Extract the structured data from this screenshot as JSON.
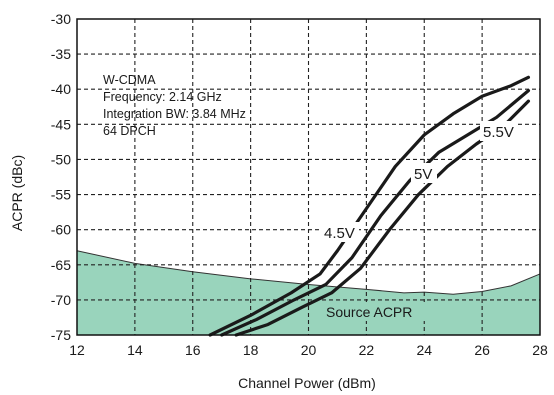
{
  "chart_data": {
    "type": "line",
    "title": "",
    "xlabel": "Channel Power (dBm)",
    "ylabel": "ACPR (dBc)",
    "xlim": [
      12,
      28
    ],
    "ylim": [
      -75,
      -30
    ],
    "xticks": [
      12,
      14,
      16,
      18,
      20,
      22,
      24,
      26,
      28
    ],
    "yticks": [
      -30,
      -35,
      -40,
      -45,
      -50,
      -55,
      -60,
      -65,
      -70,
      -75
    ],
    "grid": true,
    "grid_style": "dashed",
    "annotation_lines": [
      "W-CDMA",
      "Frequency: 2.14 GHz",
      "Integration BW: 3.84 MHz",
      "64 DPCH"
    ],
    "series": [
      {
        "name": "4.5V",
        "color": "#1a1a1a",
        "x": [
          16.6,
          18.0,
          19.4,
          20.4,
          21.0,
          22.0,
          23.0,
          24.0,
          25.0,
          26.0,
          27.0,
          27.6
        ],
        "y": [
          -75.0,
          -72.2,
          -69.0,
          -66.3,
          -63.0,
          -57.0,
          -51.0,
          -46.5,
          -43.5,
          -41.0,
          -39.5,
          -38.3
        ]
      },
      {
        "name": "5V",
        "color": "#1a1a1a",
        "x": [
          17.0,
          18.2,
          19.5,
          20.6,
          21.5,
          22.5,
          23.5,
          24.5,
          25.5,
          26.5,
          27.6
        ],
        "y": [
          -75.0,
          -72.8,
          -70.0,
          -67.8,
          -64.0,
          -58.0,
          -53.0,
          -49.0,
          -46.5,
          -44.0,
          -40.2
        ]
      },
      {
        "name": "5.5V",
        "color": "#1a1a1a",
        "x": [
          17.5,
          18.6,
          19.8,
          20.8,
          21.8,
          22.8,
          23.8,
          24.8,
          25.8,
          26.8,
          27.6
        ],
        "y": [
          -75.0,
          -73.5,
          -71.0,
          -69.0,
          -65.5,
          -60.0,
          -55.0,
          -51.0,
          -47.8,
          -45.0,
          -41.7
        ]
      },
      {
        "name": "Source ACPR",
        "type": "area",
        "color": "#99d4bc",
        "x": [
          12.0,
          14.0,
          16.0,
          18.0,
          20.0,
          22.0,
          23.3,
          24.0,
          25.0,
          26.0,
          27.0,
          28.0
        ],
        "y": [
          -63.0,
          -64.8,
          -66.0,
          -67.0,
          -67.8,
          -68.5,
          -69.0,
          -68.9,
          -69.2,
          -68.8,
          -68.0,
          -66.3
        ]
      }
    ]
  }
}
